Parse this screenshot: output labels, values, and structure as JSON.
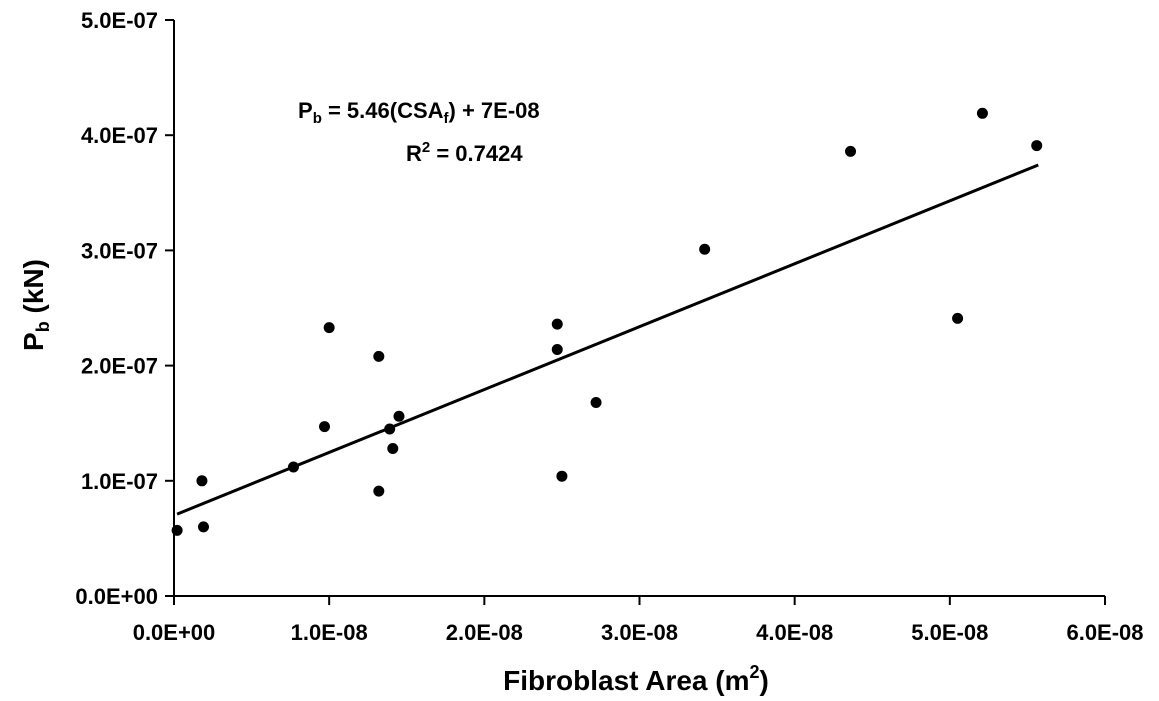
{
  "chart_data": {
    "type": "scatter",
    "xlabel": {
      "main": "Fibroblast Area (m",
      "sup": "2",
      "close": ")"
    },
    "ylabel": {
      "main": "P",
      "sub": "b",
      "rest": " (kN)"
    },
    "x_ticks": [
      "0.0E+00",
      "1.0E-08",
      "2.0E-08",
      "3.0E-08",
      "4.0E-08",
      "5.0E-08",
      "6.0E-08"
    ],
    "y_ticks": [
      "0.0E+00",
      "1.0E-07",
      "2.0E-07",
      "3.0E-07",
      "4.0E-07",
      "5.0E-07"
    ],
    "xlim": [
      0,
      6e-08
    ],
    "ylim": [
      0,
      5e-07
    ],
    "grid": false,
    "legend": "none",
    "annotation": {
      "line1": {
        "p": "P",
        "p_sub": "b",
        "mid": " = 5.46(CSA",
        "csa_sub": "f",
        "tail": ") + 7E-08"
      },
      "line2": {
        "r": "R",
        "r_sup": "2",
        "tail": " = 0.7424"
      }
    },
    "trendline": {
      "slope": 5.46,
      "intercept": 7e-08,
      "x_range": [
        2e-10,
        5.57e-08
      ]
    },
    "points": [
      {
        "x": 2e-10,
        "y": 5.7e-08
      },
      {
        "x": 1.8e-09,
        "y": 1e-07
      },
      {
        "x": 1.9e-09,
        "y": 6e-08
      },
      {
        "x": 7.7e-09,
        "y": 1.12e-07
      },
      {
        "x": 9.7e-09,
        "y": 1.47e-07
      },
      {
        "x": 1e-08,
        "y": 2.33e-07
      },
      {
        "x": 1.32e-08,
        "y": 2.08e-07
      },
      {
        "x": 1.32e-08,
        "y": 9.1e-08
      },
      {
        "x": 1.39e-08,
        "y": 1.45e-07
      },
      {
        "x": 1.41e-08,
        "y": 1.28e-07
      },
      {
        "x": 1.45e-08,
        "y": 1.56e-07
      },
      {
        "x": 2.47e-08,
        "y": 2.36e-07
      },
      {
        "x": 2.47e-08,
        "y": 2.14e-07
      },
      {
        "x": 2.5e-08,
        "y": 1.04e-07
      },
      {
        "x": 2.72e-08,
        "y": 1.68e-07
      },
      {
        "x": 3.42e-08,
        "y": 3.01e-07
      },
      {
        "x": 4.36e-08,
        "y": 3.86e-07
      },
      {
        "x": 5.05e-08,
        "y": 2.41e-07
      },
      {
        "x": 5.21e-08,
        "y": 4.19e-07
      },
      {
        "x": 5.56e-08,
        "y": 3.91e-07
      }
    ]
  }
}
